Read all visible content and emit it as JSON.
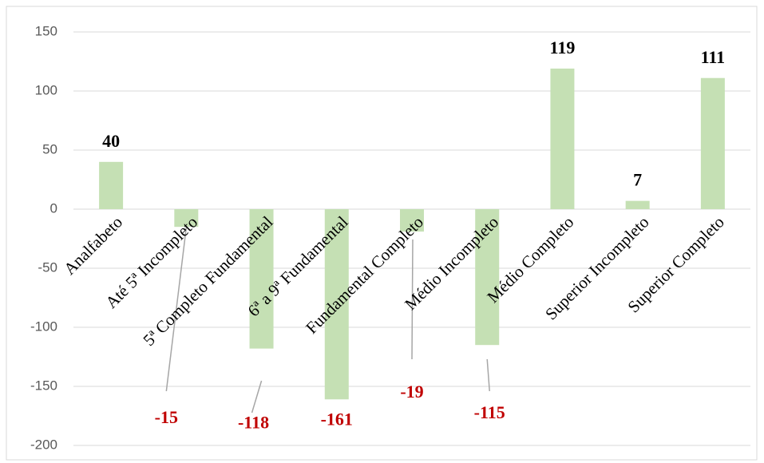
{
  "chart_data": {
    "type": "bar",
    "categories": [
      "Analfabeto",
      "Até 5ª Incompleto",
      "5ª Completo Fundamental",
      "6ª a 9ª Fundamental",
      "Fundamental Completo",
      "Médio Incompleto",
      "Médio Completo",
      "Superior Incompleto",
      "Superior Completo"
    ],
    "values": [
      40,
      -15,
      -118,
      -161,
      -19,
      -115,
      119,
      7,
      111
    ],
    "color": "#c5e0b4",
    "positive_label_color": "#000000",
    "negative_label_color": "#c00000",
    "ylim": [
      -200,
      150
    ],
    "yticks": [
      -200,
      -150,
      -100,
      -50,
      0,
      50,
      100,
      150
    ],
    "grid": true
  }
}
